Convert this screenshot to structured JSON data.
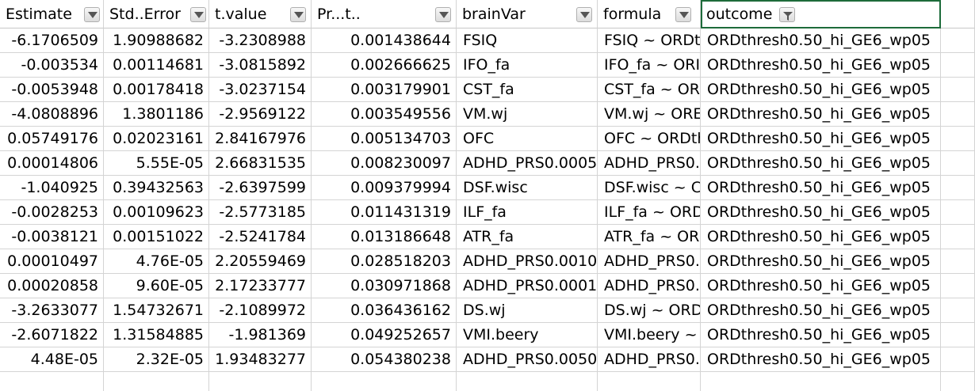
{
  "columns": [
    {
      "key": "estimate",
      "label": "Estimate",
      "align": "num",
      "filter_icon": "dropdown-arrow-icon"
    },
    {
      "key": "std_error",
      "label": "Std..Error",
      "align": "num",
      "filter_icon": "dropdown-arrow-icon"
    },
    {
      "key": "t_value",
      "label": "t.value",
      "align": "num",
      "filter_icon": "dropdown-arrow-icon"
    },
    {
      "key": "pr_t",
      "label": "Pr...t..",
      "align": "num",
      "filter_icon": "dropdown-arrow-icon"
    },
    {
      "key": "brain_var",
      "label": "brainVar",
      "align": "txt",
      "filter_icon": "dropdown-arrow-icon"
    },
    {
      "key": "formula",
      "label": "formula",
      "align": "txt",
      "filter_icon": "dropdown-arrow-icon"
    },
    {
      "key": "outcome",
      "label": "outcome",
      "align": "txt",
      "filter_icon": "filter-funnel-icon",
      "filter_active": true
    }
  ],
  "rows": [
    [
      "-6.1706509",
      "1.90988682",
      "-3.2308988",
      "0.001438644",
      "FSIQ",
      "FSIQ ~ ORDt",
      "ORDthresh0.50_hi_GE6_wp05"
    ],
    [
      "-0.003534",
      "0.00114681",
      "-3.0815892",
      "0.002666625",
      "IFO_fa",
      "IFO_fa ~ ORI",
      "ORDthresh0.50_hi_GE6_wp05"
    ],
    [
      "-0.0053948",
      "0.00178418",
      "-3.0237154",
      "0.003179901",
      "CST_fa",
      "CST_fa ~ OR",
      "ORDthresh0.50_hi_GE6_wp05"
    ],
    [
      "-4.0808896",
      "1.3801186",
      "-2.9569122",
      "0.003549556",
      "VM.wj",
      "VM.wj ~ ORE",
      "ORDthresh0.50_hi_GE6_wp05"
    ],
    [
      "0.05749176",
      "0.02023161",
      "2.84167976",
      "0.005134703",
      "OFC",
      "OFC ~ ORDth",
      "ORDthresh0.50_hi_GE6_wp05"
    ],
    [
      "0.00014806",
      "5.55E-05",
      "2.66831535",
      "0.008230097",
      "ADHD_PRS0.0005",
      "ADHD_PRS0.",
      "ORDthresh0.50_hi_GE6_wp05"
    ],
    [
      "-1.040925",
      "0.39432563",
      "-2.6397599",
      "0.009379994",
      "DSF.wisc",
      "DSF.wisc ~ C",
      "ORDthresh0.50_hi_GE6_wp05"
    ],
    [
      "-0.0028253",
      "0.00109623",
      "-2.5773185",
      "0.011431319",
      "ILF_fa",
      "ILF_fa ~ ORD",
      "ORDthresh0.50_hi_GE6_wp05"
    ],
    [
      "-0.0038121",
      "0.00151022",
      "-2.5241784",
      "0.013186648",
      "ATR_fa",
      "ATR_fa ~ OR",
      "ORDthresh0.50_hi_GE6_wp05"
    ],
    [
      "0.00010497",
      "4.76E-05",
      "2.20559469",
      "0.028518203",
      "ADHD_PRS0.0010",
      "ADHD_PRS0.",
      "ORDthresh0.50_hi_GE6_wp05"
    ],
    [
      "0.00020858",
      "9.60E-05",
      "2.17233777",
      "0.030971868",
      "ADHD_PRS0.0001",
      "ADHD_PRS0.",
      "ORDthresh0.50_hi_GE6_wp05"
    ],
    [
      "-3.2633077",
      "1.54732671",
      "-2.1089972",
      "0.036436162",
      "DS.wj",
      "DS.wj ~ ORD",
      "ORDthresh0.50_hi_GE6_wp05"
    ],
    [
      "-2.6071822",
      "1.31584885",
      "-1.981369",
      "0.049252657",
      "VMI.beery",
      "VMI.beery ~",
      "ORDthresh0.50_hi_GE6_wp05"
    ],
    [
      "4.48E-05",
      "2.32E-05",
      "1.93483277",
      "0.054380238",
      "ADHD_PRS0.0050",
      "ADHD_PRS0.",
      "ORDthresh0.50_hi_GE6_wp05"
    ]
  ],
  "colors": {
    "grid": "#d4d4d4",
    "active_cell_border": "#1d6b3a"
  }
}
